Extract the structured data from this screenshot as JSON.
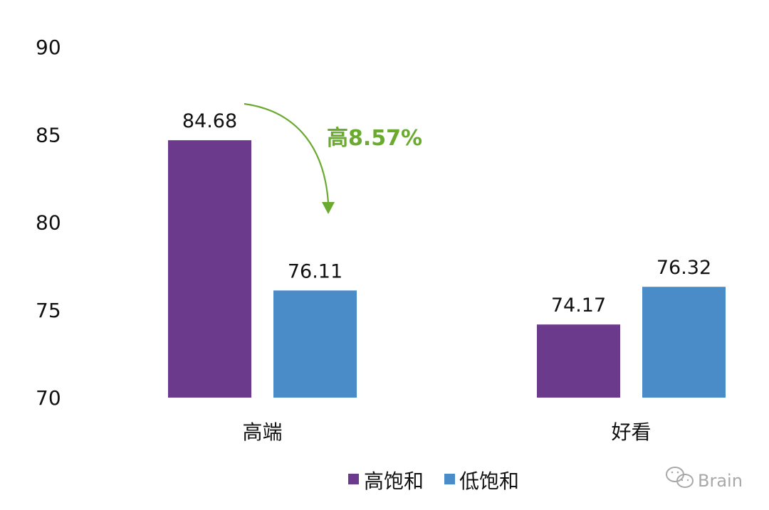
{
  "chart_data": {
    "type": "bar",
    "categories": [
      "高端",
      "好看"
    ],
    "series": [
      {
        "name": "高饱和",
        "values": [
          84.68,
          74.17
        ],
        "color": "#6C3A8C"
      },
      {
        "name": "低饱和",
        "values": [
          76.11,
          76.32
        ],
        "color": "#4A8CC8"
      }
    ],
    "data_labels": [
      [
        "84.68",
        "74.17"
      ],
      [
        "76.11",
        "76.32"
      ]
    ],
    "ylim": [
      70,
      90
    ],
    "yticks": [
      70,
      75,
      80,
      85,
      90
    ],
    "grid": false,
    "legend_position": "bottom",
    "annotation": {
      "text": "高8.57%",
      "color": "#6AAA2E"
    }
  },
  "watermark": {
    "text": "Brain",
    "icon": "wechat-icon"
  }
}
